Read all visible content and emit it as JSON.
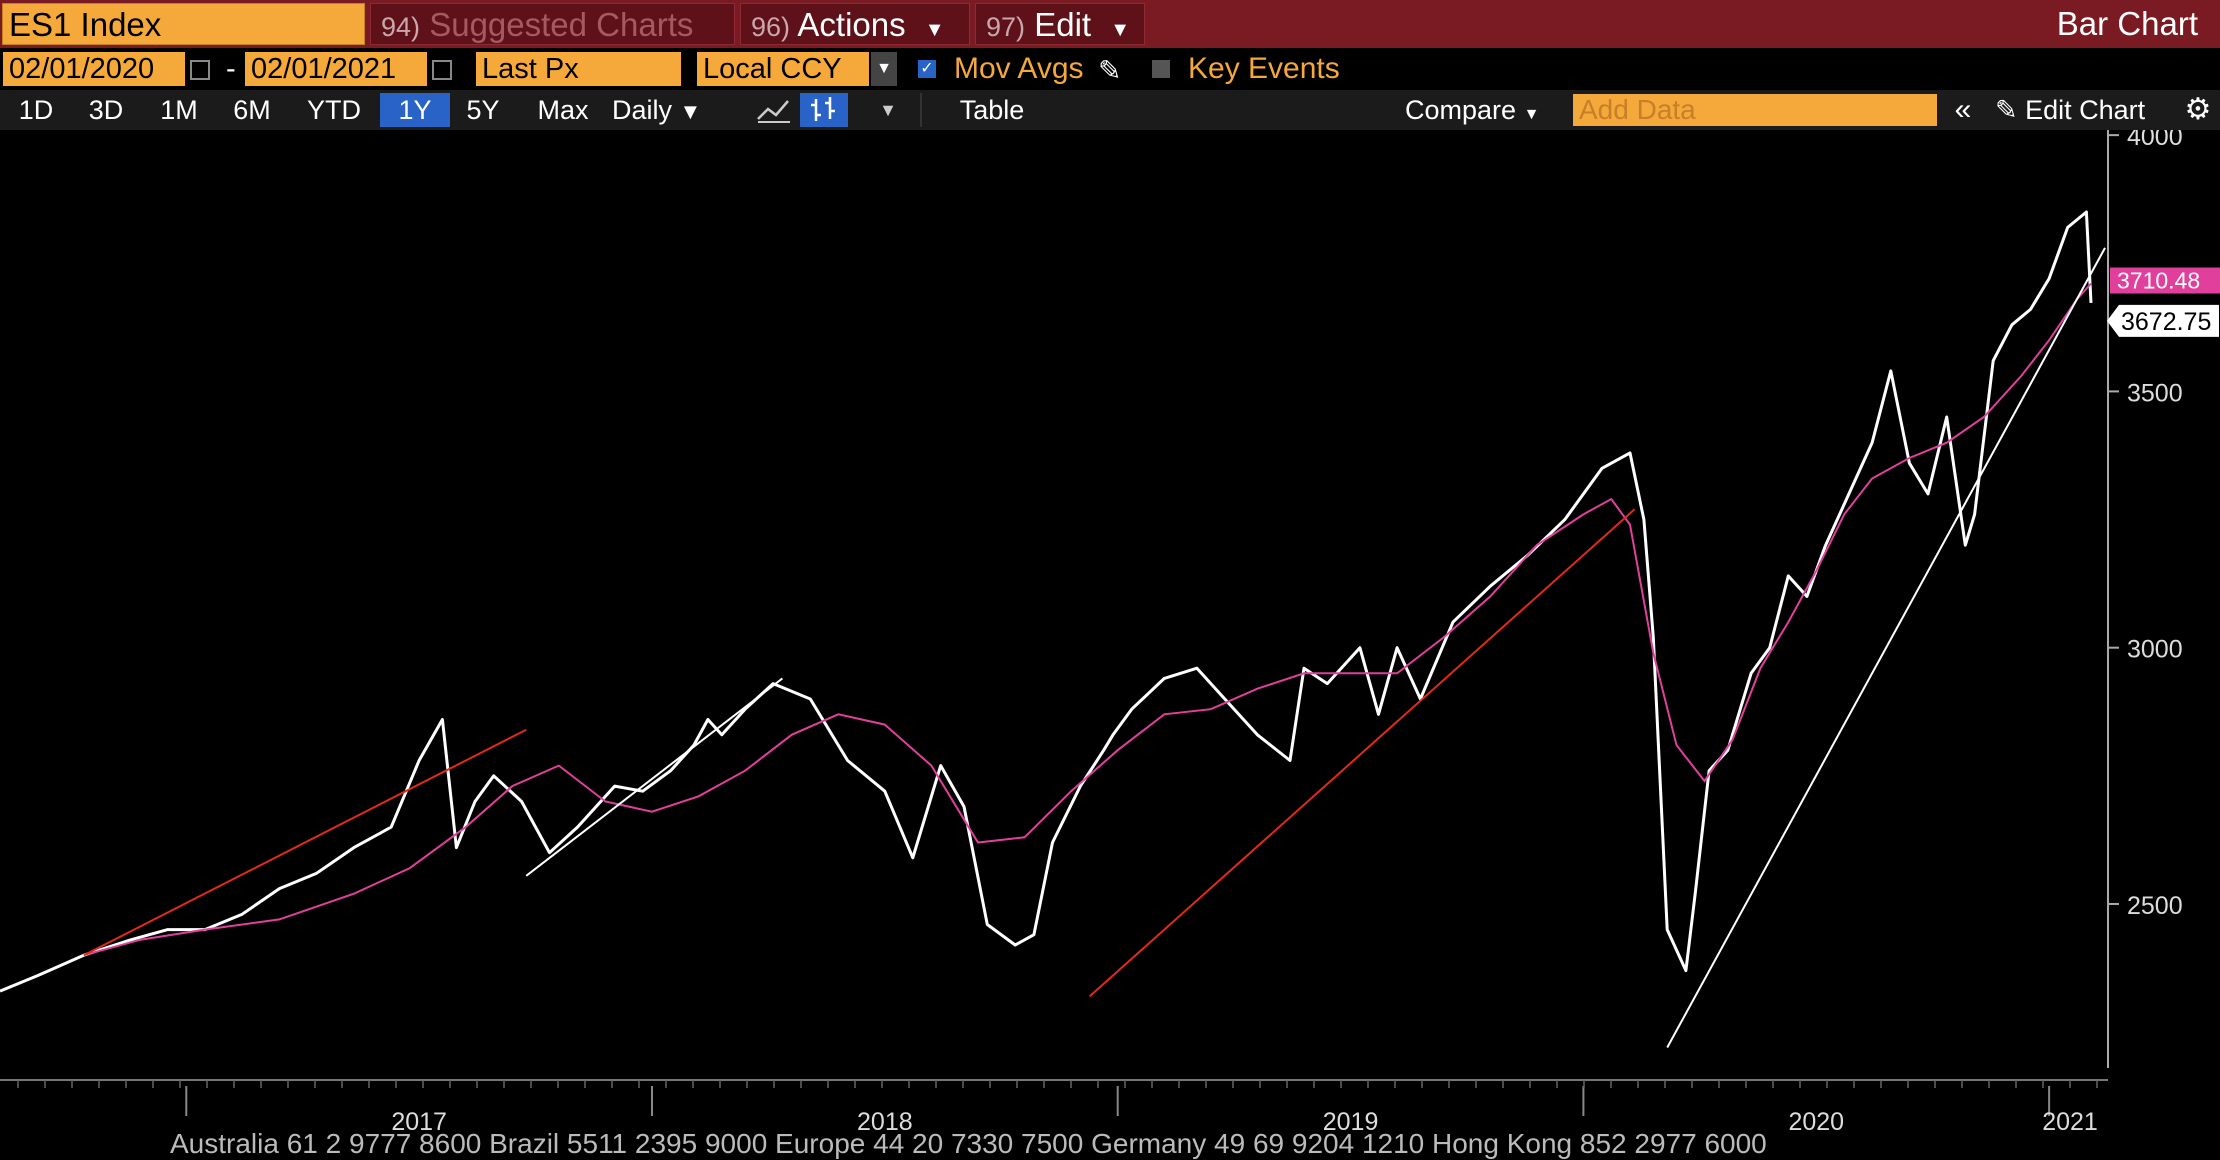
{
  "toolbar": {
    "ticker": "ES1 Index",
    "suggested": {
      "num": "94)",
      "label": "Suggested Charts"
    },
    "actions": {
      "num": "96)",
      "label": "Actions"
    },
    "edit": {
      "num": "97)",
      "label": "Edit"
    },
    "chart_type": "Bar Chart"
  },
  "settings": {
    "start_date": "02/01/2020",
    "dash": "-",
    "end_date": "02/01/2021",
    "field": "Last Px",
    "currency": "Local CCY",
    "mov_avgs_label": "Mov Avgs",
    "mov_avgs_checked": true,
    "key_events_label": "Key Events",
    "key_events_checked": false
  },
  "range_tabs": [
    "1D",
    "3D",
    "1M",
    "6M",
    "YTD",
    "1Y",
    "5Y",
    "Max"
  ],
  "selected_range": "1Y",
  "frequency": "Daily",
  "table_label": "Table",
  "compare_label": "Compare",
  "add_data_placeholder": "Add Data",
  "edit_chart_label": "Edit Chart",
  "footer_ticker": "Australia 61 2 9777 8600 Brazil 5511 2395 9000 Europe 44 20 7330 7500 Germany 49 69 9204 1210 Hong Kong 852 2977 6000",
  "colors": {
    "price": "#ffffff",
    "moving_average": "#e0409b",
    "trendline_red": "#e02b1a",
    "trendline_white": "#ffffff",
    "accent": "#f5a93a",
    "header": "#7a1b24"
  },
  "chart_data": {
    "type": "line",
    "title": "",
    "y_ticks": [
      2500,
      3000,
      3500,
      4000
    ],
    "ylim": [
      2180,
      4010
    ],
    "x_tick_labels": [
      "2017",
      "2018",
      "2019",
      "2020",
      "2021"
    ],
    "xlim": [
      2016.6,
      2021.12
    ],
    "last_price_label": "3672.75",
    "ma_last_label": "3710.48",
    "series": [
      {
        "type": "price",
        "x": [
          2016.6,
          2016.68,
          2016.78,
          2016.88,
          2016.96,
          2017.04,
          2017.12,
          2017.2,
          2017.28,
          2017.36,
          2017.44,
          2017.5,
          2017.55,
          2017.58,
          2017.62,
          2017.66,
          2017.72,
          2017.78,
          2017.84,
          2017.92,
          2017.98,
          2018.04,
          2018.09,
          2018.12,
          2018.15,
          2018.2,
          2018.26,
          2018.34,
          2018.42,
          2018.5,
          2018.56,
          2018.62,
          2018.67,
          2018.72,
          2018.78,
          2018.82,
          2018.86,
          2018.92,
          2018.97,
          2018.99,
          2019.03,
          2019.1,
          2019.17,
          2019.23,
          2019.3,
          2019.37,
          2019.4,
          2019.45,
          2019.52,
          2019.56,
          2019.6,
          2019.65,
          2019.72,
          2019.8,
          2019.88,
          2019.96,
          2020.04,
          2020.1,
          2020.13,
          2020.15,
          2020.18,
          2020.22,
          2020.24,
          2020.27,
          2020.31,
          2020.36,
          2020.4,
          2020.44,
          2020.48,
          2020.52,
          2020.57,
          2020.62,
          2020.66,
          2020.7,
          2020.74,
          2020.78,
          2020.82,
          2020.84,
          2020.88,
          2020.92,
          2020.96,
          2021.0,
          2021.04,
          2021.08,
          2021.09
        ],
        "y": [
          2330,
          2360,
          2400,
          2430,
          2450,
          2450,
          2480,
          2530,
          2560,
          2610,
          2650,
          2780,
          2860,
          2610,
          2700,
          2750,
          2700,
          2600,
          2650,
          2730,
          2720,
          2760,
          2810,
          2860,
          2830,
          2880,
          2930,
          2900,
          2780,
          2720,
          2590,
          2770,
          2690,
          2460,
          2420,
          2440,
          2620,
          2730,
          2800,
          2830,
          2880,
          2940,
          2960,
          2900,
          2830,
          2780,
          2960,
          2930,
          3000,
          2870,
          3000,
          2900,
          3050,
          3120,
          3180,
          3250,
          3350,
          3380,
          3250,
          3020,
          2450,
          2370,
          2520,
          2760,
          2800,
          2950,
          3000,
          3140,
          3100,
          3200,
          3300,
          3400,
          3540,
          3360,
          3300,
          3450,
          3200,
          3260,
          3560,
          3630,
          3660,
          3720,
          3820,
          3850,
          3672.75
        ]
      },
      {
        "type": "moving_average",
        "x": [
          2016.78,
          2016.9,
          2017.04,
          2017.2,
          2017.36,
          2017.48,
          2017.6,
          2017.7,
          2017.8,
          2017.9,
          2018.0,
          2018.1,
          2018.2,
          2018.3,
          2018.4,
          2018.5,
          2018.6,
          2018.7,
          2018.8,
          2018.9,
          2019.0,
          2019.1,
          2019.2,
          2019.3,
          2019.4,
          2019.5,
          2019.6,
          2019.7,
          2019.8,
          2019.9,
          2020.0,
          2020.06,
          2020.1,
          2020.15,
          2020.2,
          2020.26,
          2020.32,
          2020.38,
          2020.44,
          2020.5,
          2020.56,
          2020.62,
          2020.7,
          2020.78,
          2020.86,
          2020.94,
          2021.0,
          2021.06,
          2021.09
        ],
        "y": [
          2400,
          2430,
          2450,
          2470,
          2520,
          2570,
          2650,
          2730,
          2770,
          2700,
          2680,
          2710,
          2760,
          2830,
          2870,
          2850,
          2770,
          2620,
          2630,
          2720,
          2800,
          2870,
          2880,
          2920,
          2950,
          2950,
          2950,
          3020,
          3100,
          3200,
          3260,
          3290,
          3240,
          2990,
          2810,
          2740,
          2820,
          2960,
          3050,
          3150,
          3260,
          3330,
          3370,
          3400,
          3450,
          3530,
          3600,
          3680,
          3710.48
        ]
      }
    ],
    "trendlines": [
      {
        "color": "red",
        "x": [
          2016.78,
          2017.73
        ],
        "y": [
          2400,
          2840
        ]
      },
      {
        "color": "white",
        "x": [
          2017.73,
          2018.28
        ],
        "y": [
          2555,
          2940
        ]
      },
      {
        "color": "red",
        "x": [
          2018.94,
          2020.11
        ],
        "y": [
          2320,
          3270
        ]
      },
      {
        "color": "white",
        "x": [
          2020.18,
          2021.12
        ],
        "y": [
          2220,
          3780
        ]
      }
    ]
  }
}
